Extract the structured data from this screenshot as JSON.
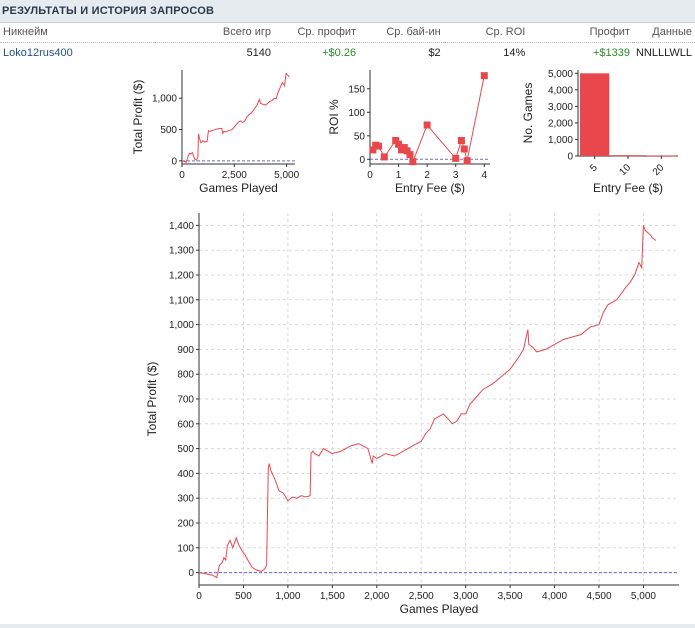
{
  "header": {
    "title": "РЕЗУЛЬТАТЫ И ИСТОРИЯ ЗАПРОСОВ"
  },
  "table": {
    "columns": [
      "Никнейм",
      "Всего игр",
      "Ср. профит",
      "Ср. бай-ин",
      "Ср. ROI",
      "Профит",
      "Данные"
    ],
    "row": {
      "nickname": "Loko12rus400",
      "total_games": "5140",
      "avg_profit": "+$0.26",
      "avg_buyin": "$2",
      "avg_roi": "14%",
      "profit": "+$1339",
      "data": "NNLLLWLL"
    }
  },
  "colors": {
    "series": "#e8484c",
    "baseline": "#6a6ad0",
    "grid": "#d8d8d8",
    "positive": "#2b8a2b"
  },
  "chart_data": [
    {
      "id": "small_profit",
      "type": "line",
      "title": "",
      "xlabel": "Games Played",
      "ylabel": "Total Profit ($)",
      "xlim": [
        0,
        5400
      ],
      "ylim": [
        -50,
        1450
      ],
      "xticks": [
        0,
        2500,
        5000
      ],
      "xtick_labels": [
        "0",
        "2,500",
        "5,000"
      ],
      "yticks": [
        0,
        500,
        1000
      ],
      "ytick_labels": [
        "0",
        "500",
        "1,000"
      ],
      "x": [
        0,
        150,
        200,
        280,
        350,
        420,
        500,
        600,
        700,
        760,
        790,
        820,
        900,
        1000,
        1100,
        1200,
        1260,
        1300,
        1500,
        1700,
        1900,
        1950,
        2000,
        2100,
        2200,
        2400,
        2500,
        2600,
        2700,
        2800,
        2900,
        3000,
        3100,
        3200,
        3300,
        3400,
        3500,
        3600,
        3700,
        3750,
        3800,
        4000,
        4100,
        4200,
        4300,
        4400,
        4500,
        4550,
        4600,
        4700,
        4800,
        4900,
        4980,
        5000,
        5050,
        5100,
        5140
      ],
      "y": [
        0,
        -10,
        -25,
        60,
        120,
        110,
        130,
        30,
        10,
        60,
        430,
        380,
        290,
        320,
        300,
        310,
        480,
        470,
        490,
        510,
        520,
        440,
        470,
        460,
        480,
        500,
        540,
        580,
        620,
        640,
        610,
        640,
        700,
        740,
        760,
        800,
        850,
        900,
        980,
        920,
        910,
        890,
        920,
        950,
        960,
        1000,
        990,
        1050,
        1100,
        1180,
        1250,
        1200,
        1400,
        1380,
        1370,
        1350,
        1339
      ],
      "baseline": 0
    },
    {
      "id": "small_roi",
      "type": "scatter",
      "title": "",
      "xlabel": "Entry Fee ($)",
      "ylabel": "ROI %",
      "xlim": [
        0,
        4.2
      ],
      "ylim": [
        -10,
        190
      ],
      "xticks": [
        0,
        1,
        2,
        3,
        4
      ],
      "xtick_labels": [
        "0",
        "1",
        "2",
        "3",
        "4"
      ],
      "yticks": [
        0,
        50,
        100,
        150
      ],
      "ytick_labels": [
        "0",
        "50",
        "100",
        "150"
      ],
      "x": [
        0.1,
        0.2,
        0.3,
        0.5,
        0.9,
        1.0,
        1.1,
        1.2,
        1.3,
        1.4,
        1.5,
        2.0,
        3.0,
        3.2,
        3.3,
        3.4,
        4.0
      ],
      "y": [
        20,
        30,
        28,
        5,
        40,
        32,
        20,
        25,
        18,
        10,
        -5,
        73,
        2,
        40,
        22,
        -3,
        178
      ],
      "baseline": 0
    },
    {
      "id": "small_games",
      "type": "bar",
      "title": "",
      "xlabel": "Entry Fee ($)",
      "ylabel": "No. Games",
      "categories": [
        "5",
        "10",
        "20"
      ],
      "values": [
        5000,
        50,
        20
      ],
      "ylim": [
        0,
        5200
      ],
      "yticks": [
        0,
        1000,
        2000,
        3000,
        4000,
        5000
      ],
      "ytick_labels": [
        "0",
        "1,000",
        "2,000",
        "3,000",
        "4,000",
        "5,000"
      ]
    },
    {
      "id": "large_profit",
      "type": "line",
      "title": "",
      "xlabel": "Games Played",
      "ylabel": "Total Profit ($)",
      "xlim": [
        0,
        5400
      ],
      "ylim": [
        -50,
        1450
      ],
      "xticks": [
        0,
        500,
        1000,
        1500,
        2000,
        2500,
        3000,
        3500,
        4000,
        4500,
        5000
      ],
      "xtick_labels": [
        "0",
        "500",
        "1,000",
        "1,500",
        "2,000",
        "2,500",
        "3,000",
        "3,500",
        "4,000",
        "4,500",
        "5,000"
      ],
      "yticks": [
        0,
        100,
        200,
        300,
        400,
        500,
        600,
        700,
        800,
        900,
        1000,
        1100,
        1200,
        1300,
        1400
      ],
      "ytick_labels": [
        "0",
        "100",
        "200",
        "300",
        "400",
        "500",
        "600",
        "700",
        "800",
        "900",
        "1,000",
        "1,100",
        "1,200",
        "1,300",
        "1,400"
      ],
      "x": [
        0,
        80,
        150,
        200,
        230,
        260,
        280,
        300,
        320,
        350,
        380,
        420,
        450,
        480,
        500,
        520,
        550,
        600,
        650,
        700,
        740,
        760,
        780,
        790,
        810,
        850,
        900,
        950,
        1000,
        1050,
        1100,
        1150,
        1200,
        1250,
        1260,
        1280,
        1300,
        1350,
        1400,
        1500,
        1600,
        1700,
        1800,
        1900,
        1950,
        1960,
        2000,
        2100,
        2200,
        2300,
        2400,
        2450,
        2500,
        2550,
        2600,
        2650,
        2700,
        2750,
        2800,
        2850,
        2900,
        2950,
        3000,
        3050,
        3100,
        3150,
        3200,
        3300,
        3400,
        3500,
        3600,
        3650,
        3700,
        3710,
        3750,
        3800,
        3900,
        4000,
        4100,
        4200,
        4300,
        4400,
        4500,
        4550,
        4600,
        4700,
        4800,
        4850,
        4900,
        4950,
        4980,
        5000,
        5020,
        5050,
        5080,
        5100,
        5140
      ],
      "y": [
        0,
        -5,
        -10,
        -20,
        30,
        40,
        60,
        50,
        110,
        130,
        100,
        140,
        110,
        90,
        80,
        70,
        50,
        20,
        10,
        5,
        15,
        30,
        420,
        440,
        410,
        380,
        330,
        320,
        290,
        305,
        300,
        310,
        305,
        310,
        480,
        490,
        480,
        470,
        500,
        480,
        490,
        510,
        520,
        500,
        440,
        470,
        460,
        480,
        470,
        490,
        510,
        520,
        530,
        560,
        580,
        620,
        630,
        640,
        620,
        600,
        610,
        640,
        640,
        680,
        700,
        720,
        740,
        760,
        790,
        820,
        870,
        900,
        980,
        920,
        910,
        890,
        900,
        920,
        940,
        950,
        960,
        990,
        1000,
        1050,
        1080,
        1100,
        1150,
        1170,
        1200,
        1250,
        1230,
        1400,
        1380,
        1370,
        1360,
        1350,
        1339
      ],
      "baseline": 0
    }
  ]
}
